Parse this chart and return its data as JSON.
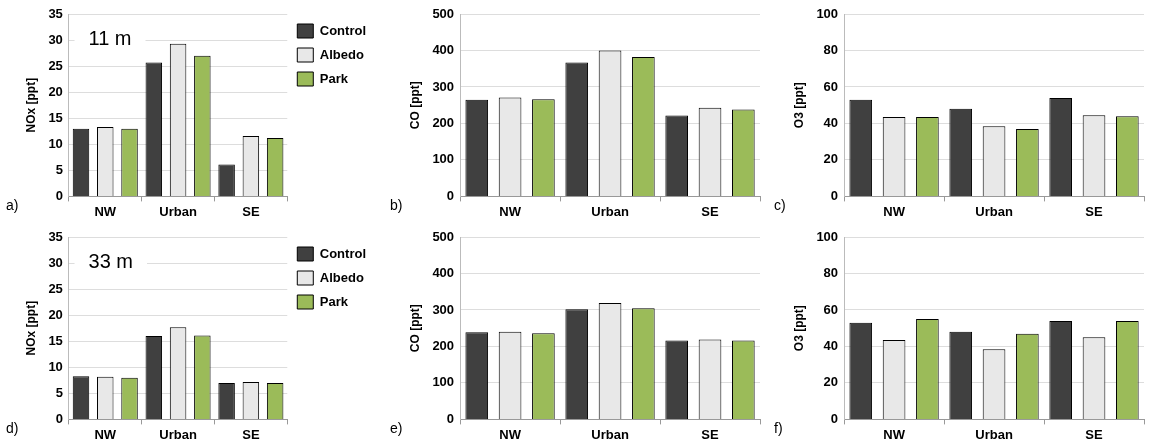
{
  "chart_data": [
    {
      "type": "bar",
      "ylabel": "NOx [ppt]",
      "categories": [
        "NW",
        "Urban",
        "SE"
      ],
      "ylim": [
        0,
        35
      ],
      "yticks": [
        0,
        5,
        10,
        15,
        20,
        25,
        30,
        35
      ],
      "grid": "y",
      "legend": "top right",
      "annotations": [
        "11 m",
        "a)"
      ],
      "series": [
        {
          "name": "Control",
          "color": "#404040",
          "values": [
            13,
            25.7,
            6.1
          ]
        },
        {
          "name": "Albedo",
          "color": "#e8e8e8",
          "values": [
            13.3,
            29.3,
            11.6
          ]
        },
        {
          "name": "Park",
          "color": "#9bbb59",
          "values": [
            13,
            27,
            11.2
          ]
        }
      ]
    },
    {
      "type": "bar",
      "ylabel": "CO [ppt]",
      "categories": [
        "NW",
        "Urban",
        "SE"
      ],
      "ylim": [
        0,
        500
      ],
      "yticks": [
        0,
        100,
        200,
        300,
        400,
        500
      ],
      "grid": "y",
      "annotations": [
        "b)"
      ],
      "series": [
        {
          "color": "#404040",
          "values": [
            265,
            367,
            222
          ]
        },
        {
          "color": "#e8e8e8",
          "values": [
            271,
            400,
            243
          ]
        },
        {
          "color": "#9bbb59",
          "values": [
            266,
            382,
            238
          ]
        }
      ]
    },
    {
      "type": "bar",
      "ylabel": "O3 [ppt]",
      "categories": [
        "NW",
        "Urban",
        "SE"
      ],
      "ylim": [
        0,
        100
      ],
      "yticks": [
        0,
        20,
        40,
        60,
        80,
        100
      ],
      "grid": "y",
      "annotations": [
        "c)"
      ],
      "series": [
        {
          "color": "#404040",
          "values": [
            53,
            48,
            54
          ]
        },
        {
          "color": "#e8e8e8",
          "values": [
            43.5,
            38.5,
            44.5
          ]
        },
        {
          "color": "#9bbb59",
          "values": [
            43.5,
            37,
            44
          ]
        }
      ]
    },
    {
      "type": "bar",
      "ylabel": "NOx [ppt]",
      "categories": [
        "NW",
        "Urban",
        "SE"
      ],
      "ylim": [
        0,
        35
      ],
      "yticks": [
        0,
        5,
        10,
        15,
        20,
        25,
        30,
        35
      ],
      "grid": "y",
      "legend": "top right",
      "annotations": [
        "33 m",
        "d)"
      ],
      "series": [
        {
          "name": "Control",
          "color": "#404040",
          "values": [
            8.3,
            16,
            7
          ]
        },
        {
          "name": "Albedo",
          "color": "#e8e8e8",
          "values": [
            8.2,
            17.7,
            7.2
          ]
        },
        {
          "name": "Park",
          "color": "#9bbb59",
          "values": [
            8,
            16.1,
            7
          ]
        }
      ]
    },
    {
      "type": "bar",
      "ylabel": "CO [ppt]",
      "categories": [
        "NW",
        "Urban",
        "SE"
      ],
      "ylim": [
        0,
        500
      ],
      "yticks": [
        0,
        100,
        200,
        300,
        400,
        500
      ],
      "grid": "y",
      "annotations": [
        "e)"
      ],
      "series": [
        {
          "color": "#404040",
          "values": [
            239,
            302,
            216
          ]
        },
        {
          "color": "#e8e8e8",
          "values": [
            240,
            319,
            219
          ]
        },
        {
          "color": "#9bbb59",
          "values": [
            236,
            305,
            216
          ]
        }
      ]
    },
    {
      "type": "bar",
      "ylabel": "O3 [ppt]",
      "categories": [
        "NW",
        "Urban",
        "SE"
      ],
      "ylim": [
        0,
        100
      ],
      "yticks": [
        0,
        20,
        40,
        60,
        80,
        100
      ],
      "grid": "y",
      "annotations": [
        "f)"
      ],
      "series": [
        {
          "color": "#404040",
          "values": [
            53,
            48,
            54
          ]
        },
        {
          "color": "#e8e8e8",
          "values": [
            43.5,
            38.5,
            45
          ]
        },
        {
          "color": "#9bbb59",
          "values": [
            55,
            47,
            54
          ]
        }
      ]
    }
  ]
}
